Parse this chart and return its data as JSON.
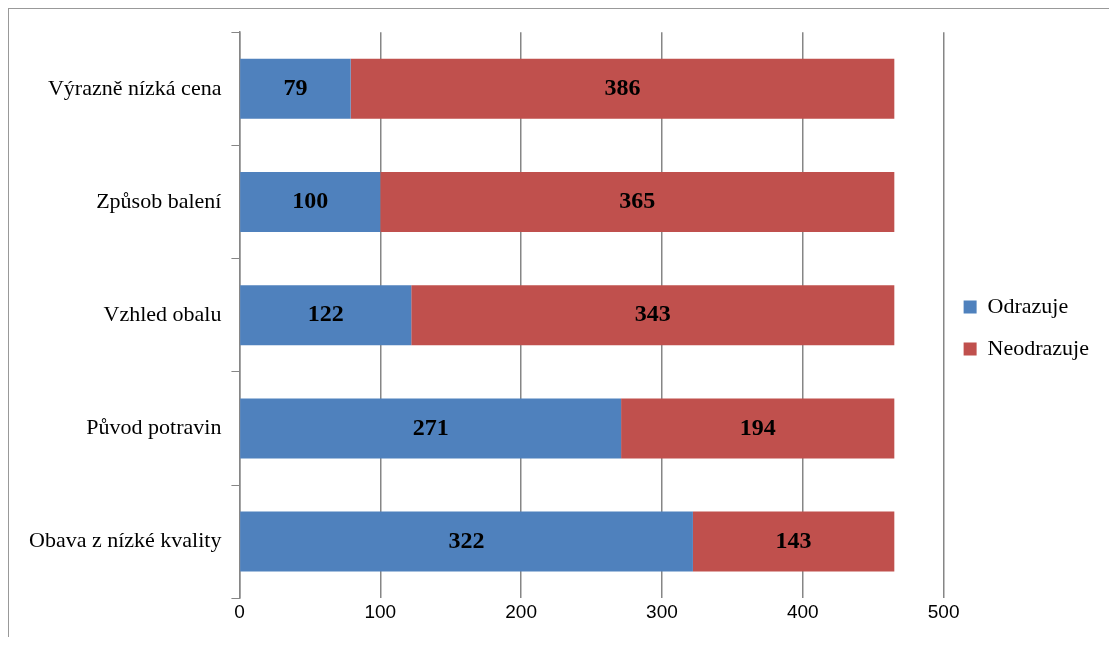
{
  "chart_data": {
    "type": "bar",
    "orientation": "horizontal",
    "stacked": true,
    "categories": [
      "Výrazně nízká cena",
      "Způsob balení",
      "Vzhled obalu",
      "Původ potravin",
      "Obava z nízké kvality"
    ],
    "series": [
      {
        "name": "Odrazuje",
        "color": "#4f81bd",
        "values": [
          79,
          100,
          122,
          271,
          322
        ]
      },
      {
        "name": "Neodrazuje",
        "color": "#c0504d",
        "values": [
          386,
          365,
          343,
          194,
          143
        ]
      }
    ],
    "xlim": [
      0,
      500
    ],
    "xticks": [
      0,
      100,
      200,
      300,
      400,
      500
    ],
    "grid": "x",
    "legend": "right",
    "data_labels": true
  }
}
